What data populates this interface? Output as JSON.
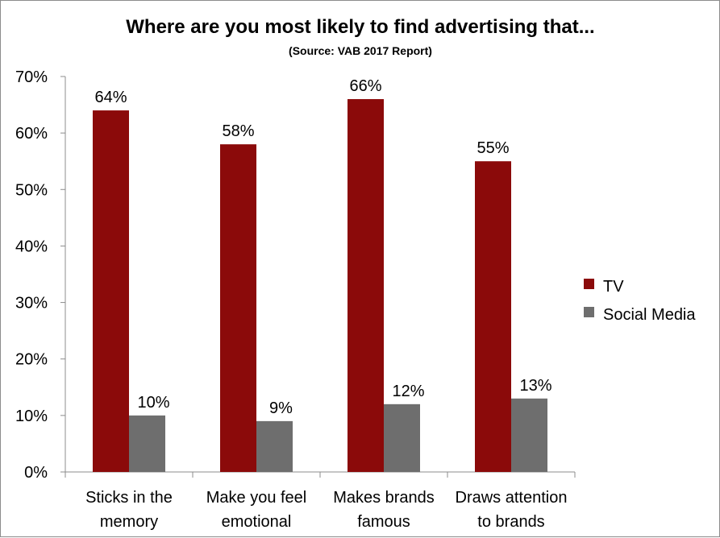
{
  "chart_data": {
    "type": "bar",
    "title": "Where are you most likely to find advertising that...",
    "subtitle": "(Source: VAB 2017 Report)",
    "categories": [
      [
        "Sticks in the",
        "memory"
      ],
      [
        "Make you feel",
        "emotional"
      ],
      [
        "Makes brands",
        "famous"
      ],
      [
        "Draws attention",
        "to brands"
      ]
    ],
    "series": [
      {
        "name": "TV",
        "color": "#8b0a0a",
        "values": [
          64,
          58,
          66,
          55
        ],
        "labels": [
          "64%",
          "58%",
          "66%",
          "55%"
        ]
      },
      {
        "name": "Social Media",
        "color": "#6e6e6e",
        "values": [
          10,
          9,
          12,
          13
        ],
        "labels": [
          "10%",
          "9%",
          "12%",
          "13%"
        ]
      }
    ],
    "ylim": [
      0,
      70
    ],
    "yticks": [
      "0%",
      "10%",
      "20%",
      "30%",
      "40%",
      "50%",
      "60%",
      "70%"
    ],
    "legend": "right",
    "grid": false
  }
}
